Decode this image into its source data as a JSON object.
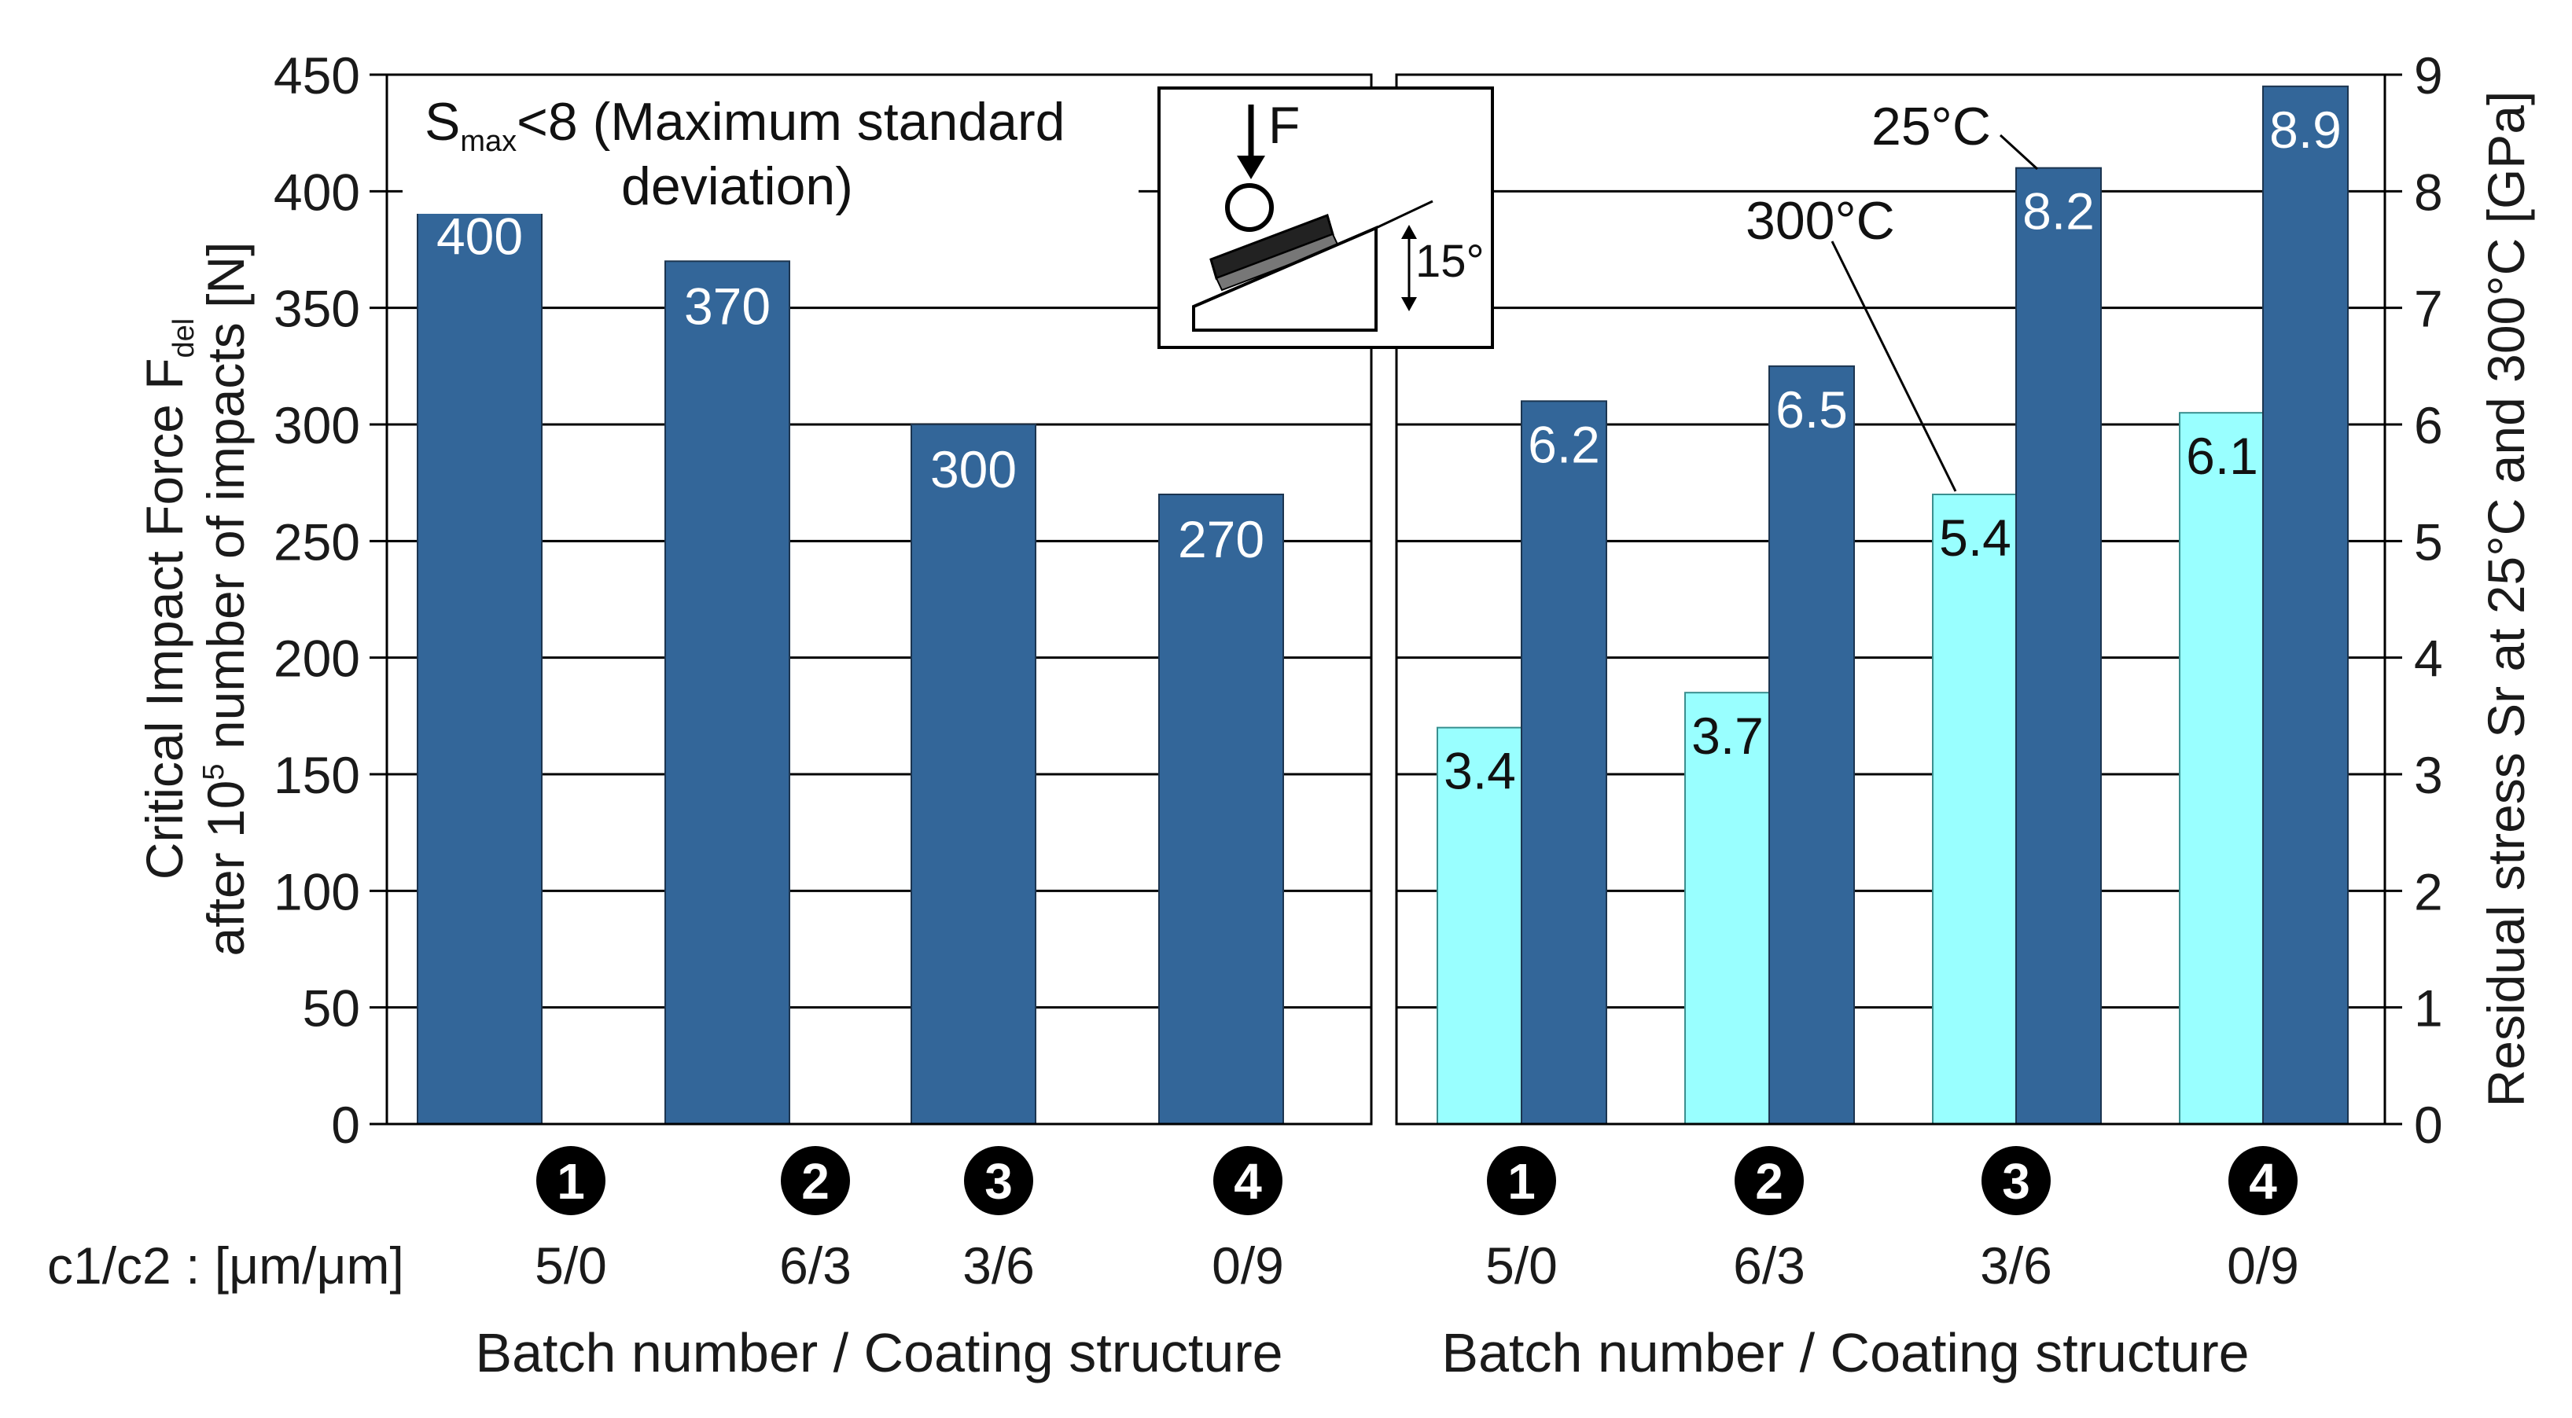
{
  "colors": {
    "dark_bar": "#336699",
    "light_bar": "#99ffff",
    "grid": "#000000",
    "badge": "#000000"
  },
  "left_axis": {
    "title_line1": "Critical Impact Force F",
    "title_line1_sub": "del",
    "title_line2_a": "after 10",
    "title_line2_sup": "5",
    "title_line2_b": " number of impacts [N]"
  },
  "right_axis": {
    "title": "Residual stress Sr at 25°C and 300°C [GPa]"
  },
  "annotation": {
    "s": "S",
    "s_sub": "max",
    "line1_rest": "<8 (Maximum standard",
    "line2": "deviation)"
  },
  "inset": {
    "force": "F",
    "angle": "15°"
  },
  "callouts": {
    "c25": "25°C",
    "c300": "300°C"
  },
  "c_row_label": "c1/c2 : [μm/μm]",
  "chart_data": [
    {
      "type": "bar",
      "title": "",
      "xlabel": "Batch number / Coating structure",
      "ylabel": "Critical Impact Force F_del after 10^5 number of impacts [N]",
      "ylim": [
        0,
        450
      ],
      "yticks": [
        "0",
        "50",
        "100",
        "150",
        "200",
        "250",
        "300",
        "350",
        "400",
        "450"
      ],
      "categories": [
        "1",
        "2",
        "3",
        "4"
      ],
      "coating_structure": [
        "5/0",
        "6/3",
        "3/6",
        "0/9"
      ],
      "series": [
        {
          "name": "Critical Impact Force",
          "values": [
            400,
            370,
            300,
            270
          ],
          "labels": [
            "400",
            "370",
            "300",
            "270"
          ]
        }
      ]
    },
    {
      "type": "bar",
      "title": "",
      "xlabel": "Batch number / Coating structure",
      "ylabel": "Residual stress Sr at 25°C and 300°C [GPa]",
      "ylim": [
        0,
        9
      ],
      "yticks": [
        "0",
        "1",
        "2",
        "3",
        "4",
        "5",
        "6",
        "7",
        "8",
        "9"
      ],
      "categories": [
        "1",
        "2",
        "3",
        "4"
      ],
      "coating_structure": [
        "5/0",
        "6/3",
        "3/6",
        "0/9"
      ],
      "series": [
        {
          "name": "300°C",
          "values": [
            3.4,
            3.7,
            5.4,
            6.1
          ],
          "labels": [
            "3.4",
            "3.7",
            "5.4",
            "6.1"
          ]
        },
        {
          "name": "25°C",
          "values": [
            6.2,
            6.5,
            8.2,
            8.9
          ],
          "labels": [
            "6.2",
            "6.5",
            "8.2",
            "8.9"
          ]
        }
      ]
    }
  ]
}
